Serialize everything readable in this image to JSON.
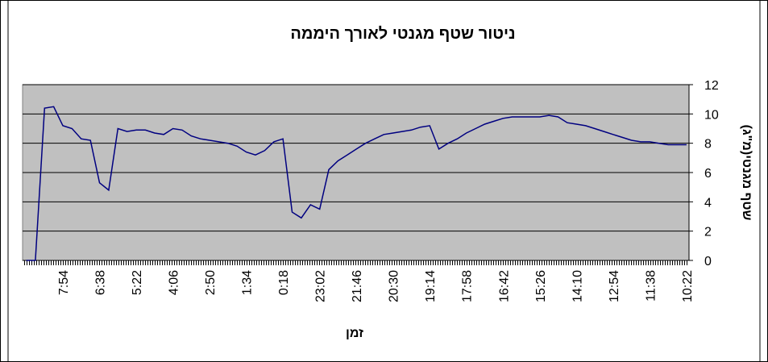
{
  "chart_data": {
    "type": "line",
    "title": "ניטור שטף מגנטי לאורך היממה",
    "x_label": "זמן",
    "y_label": "שטף מגנטי(מ\"ג)",
    "categories": [
      null,
      null,
      null,
      null,
      "7:54",
      null,
      null,
      null,
      "6:38",
      null,
      null,
      null,
      "5:22",
      null,
      null,
      null,
      "4:06",
      null,
      null,
      null,
      "2:50",
      null,
      null,
      null,
      "1:34",
      null,
      null,
      null,
      "0:18",
      null,
      null,
      null,
      "23:02",
      null,
      null,
      null,
      "21:46",
      null,
      null,
      null,
      "20:30",
      null,
      null,
      null,
      "19:14",
      null,
      null,
      null,
      "17:58",
      null,
      null,
      null,
      "16:42",
      null,
      null,
      null,
      "15:26",
      null,
      null,
      null,
      "14:10",
      null,
      null,
      null,
      "12:54",
      null,
      null,
      null,
      "11:38",
      null,
      null,
      null,
      "10:22"
    ],
    "series": [
      {
        "name": "שטף מגנטי",
        "color": "#000080",
        "values": [
          0,
          0,
          10.4,
          10.5,
          9.2,
          9.0,
          8.3,
          8.2,
          5.3,
          4.8,
          9.0,
          8.8,
          8.9,
          8.9,
          8.7,
          8.6,
          9.0,
          8.9,
          8.5,
          8.3,
          8.2,
          8.1,
          8.0,
          7.8,
          7.4,
          7.2,
          7.5,
          8.1,
          8.3,
          3.3,
          2.9,
          3.8,
          3.5,
          6.2,
          6.8,
          7.2,
          7.6,
          8.0,
          8.3,
          8.6,
          8.7,
          8.8,
          8.9,
          9.1,
          9.2,
          7.6,
          8.0,
          8.3,
          8.7,
          9.0,
          9.3,
          9.5,
          9.7,
          9.8,
          9.8,
          9.8,
          9.8,
          9.9,
          9.8,
          9.4,
          9.3,
          9.2,
          9.0,
          8.8,
          8.6,
          8.4,
          8.2,
          8.1,
          8.1,
          8.0,
          7.9,
          7.9,
          7.9
        ]
      }
    ],
    "ylim": [
      0,
      12
    ],
    "yticks": [
      0,
      2,
      4,
      6,
      8,
      10,
      12
    ],
    "grid": true,
    "plot_background": "#c0c0c0"
  }
}
